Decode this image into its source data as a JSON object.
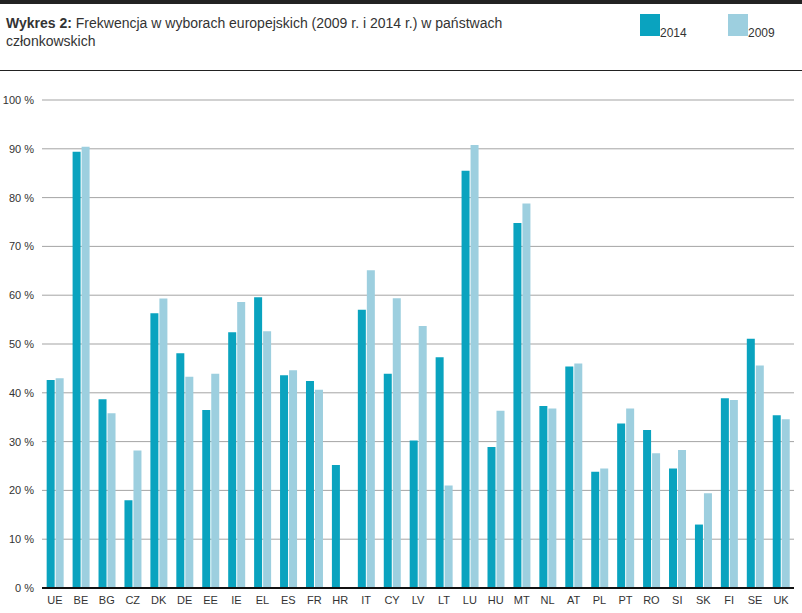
{
  "chart_data": {
    "type": "bar",
    "title": "Wykres 2: Frekwencja  w wyborach europejskich  (2009 r. i 2014 r.) w państwach członkowskich",
    "categories": [
      "UE",
      "BE",
      "BG",
      "CZ",
      "DK",
      "DE",
      "EE",
      "IE",
      "EL",
      "ES",
      "FR",
      "HR",
      "IT",
      "CY",
      "LV",
      "LT",
      "LU",
      "HU",
      "MT",
      "NL",
      "AT",
      "PL",
      "PT",
      "RO",
      "SI",
      "SK",
      "FI",
      "SE",
      "UK"
    ],
    "series": [
      {
        "name": "2014",
        "color": "#0aa3bf",
        "values": [
          42.6,
          89.4,
          38.7,
          18.0,
          56.3,
          48.1,
          36.5,
          52.4,
          59.6,
          43.6,
          42.4,
          25.2,
          57.0,
          43.9,
          30.2,
          47.3,
          85.5,
          28.9,
          74.8,
          37.3,
          45.4,
          23.8,
          33.7,
          32.4,
          24.5,
          13.0,
          38.9,
          51.1,
          35.4
        ]
      },
      {
        "name": "2009",
        "color": "#9dcfdf",
        "values": [
          43.0,
          90.4,
          35.8,
          28.2,
          59.3,
          43.3,
          43.9,
          58.6,
          52.6,
          44.6,
          40.6,
          null,
          65.1,
          59.4,
          53.7,
          21.0,
          90.8,
          36.3,
          78.8,
          36.8,
          46.0,
          24.5,
          36.8,
          27.6,
          28.3,
          19.4,
          38.5,
          45.6,
          34.6
        ]
      }
    ],
    "ylim": [
      0,
      100
    ],
    "yticks": [
      {
        "value": 0,
        "label": "0 %"
      },
      {
        "value": 10,
        "label": "10 %"
      },
      {
        "value": 20,
        "label": "20 %"
      },
      {
        "value": 30,
        "label": "30 %"
      },
      {
        "value": 40,
        "label": "40 %"
      },
      {
        "value": 50,
        "label": "50 %"
      },
      {
        "value": 60,
        "label": "60 %"
      },
      {
        "value": 70,
        "label": "70 %"
      },
      {
        "value": 80,
        "label": "80 %"
      },
      {
        "value": 90,
        "label": "90 %"
      },
      {
        "value": 100,
        "label": "100 %"
      }
    ],
    "grid": true,
    "legend": "top-right"
  }
}
